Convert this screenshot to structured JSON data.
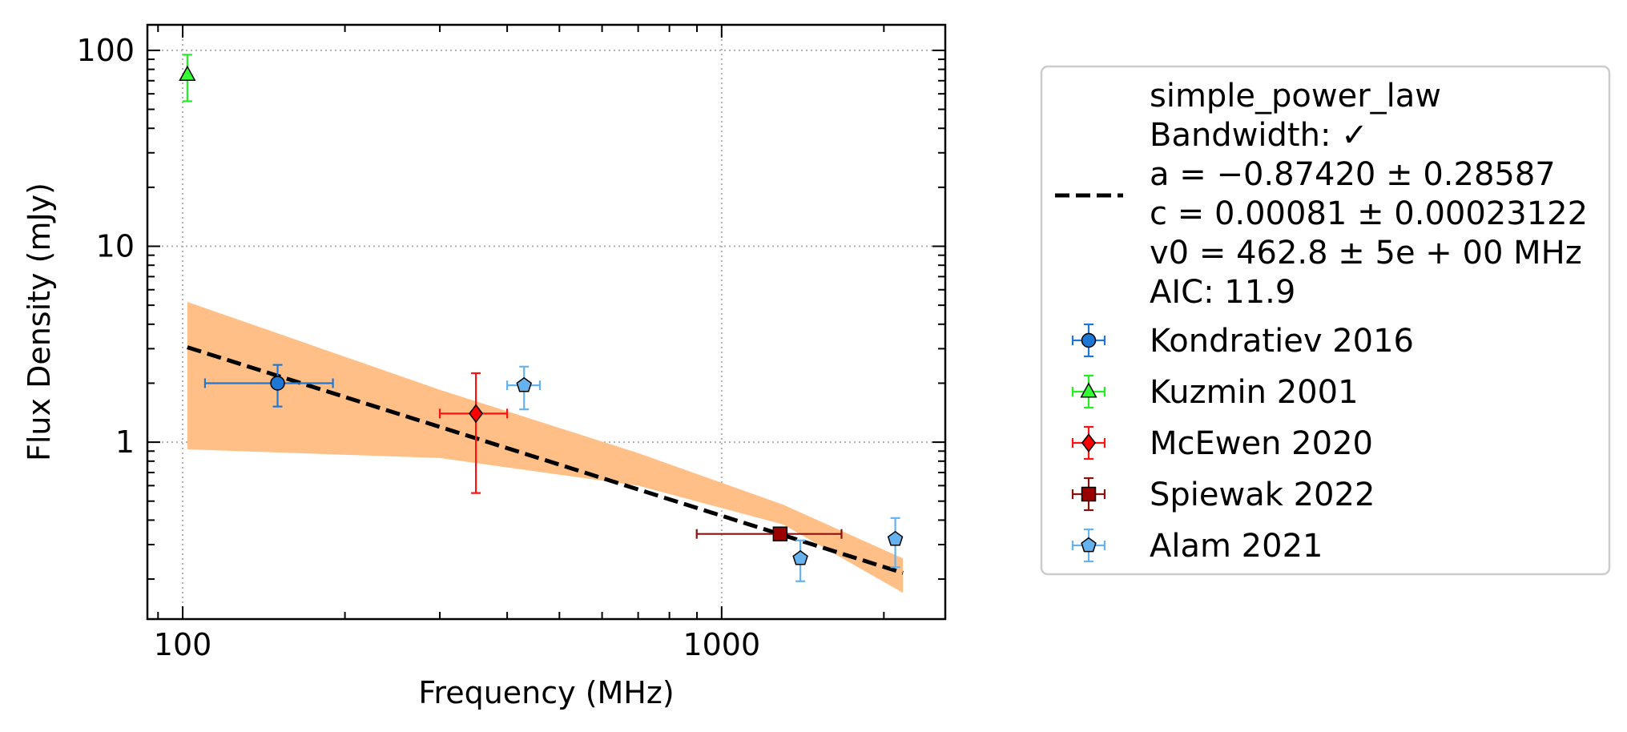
{
  "chart_data": {
    "type": "scatter",
    "xlabel": "Frequency (MHz)",
    "ylabel": "Flux Density (mJy)",
    "x_scale": "log",
    "y_scale": "log",
    "xlim": [
      86,
      2600
    ],
    "ylim": [
      0.125,
      135
    ],
    "x_tick_labels": [
      "100",
      "1000"
    ],
    "y_tick_labels": [
      "1",
      "10",
      "100"
    ],
    "grid": true,
    "legend_position": "outside-right",
    "fit": {
      "model": "simple_power_law",
      "lines": [
        "simple_power_law",
        "Bandwidth: ✓",
        "a = −0.87420 ± 0.28587",
        "c = 0.00081 ± 0.00023122",
        "v0 = 462.8 ± 5e + 00 MHz",
        "AIC: 11.9"
      ],
      "line_color": "#000000",
      "band_color": "#ffbf86",
      "x": [
        102,
        2170
      ],
      "y": [
        3.05,
        0.215
      ],
      "band_x": [
        102,
        300,
        700,
        1300,
        2170
      ],
      "band_upper": [
        5.2,
        1.85,
        0.88,
        0.48,
        0.255
      ],
      "band_lower": [
        0.92,
        0.83,
        0.6,
        0.38,
        0.17
      ]
    },
    "series": [
      {
        "name": "Kondratiev 2016",
        "marker": "circle",
        "color": "#1f77d4",
        "face": "#1f77d4",
        "points": [
          {
            "x": 150,
            "y": 2.0,
            "xerr": [
              40,
              40
            ],
            "yerr": [
              0.48,
              0.48
            ]
          }
        ]
      },
      {
        "name": "Kuzmin 2001",
        "marker": "triangle",
        "color": "#22ee22",
        "face": "#33ff33",
        "points": [
          {
            "x": 102,
            "y": 75,
            "xerr": [
              0,
              0
            ],
            "yerr": [
              20,
              20
            ]
          }
        ]
      },
      {
        "name": "McEwen 2020",
        "marker": "diamond",
        "color": "#ff1111",
        "face": "#ff0000",
        "points": [
          {
            "x": 350,
            "y": 1.4,
            "xerr": [
              50,
              50
            ],
            "yerr": [
              0.85,
              0.85
            ]
          }
        ]
      },
      {
        "name": "Spiewak 2022",
        "marker": "square",
        "color": "#8b1010",
        "face": "#9a0000",
        "points": [
          {
            "x": 1284,
            "y": 0.34,
            "xerr": [
              385,
              385
            ],
            "yerr": [
              0.0,
              0.0
            ]
          }
        ]
      },
      {
        "name": "Alam 2021",
        "marker": "pentagon",
        "color": "#66b2ee",
        "face": "#66b2ee",
        "points": [
          {
            "x": 430,
            "y": 1.95,
            "xerr": [
              30,
              30
            ],
            "yerr": [
              0.48,
              0.48
            ]
          },
          {
            "x": 1400,
            "y": 0.255,
            "xerr": [
              0,
              0
            ],
            "yerr": [
              0.06,
              0.06
            ]
          },
          {
            "x": 2100,
            "y": 0.32,
            "xerr": [
              0,
              0
            ],
            "yerr": [
              0.09,
              0.09
            ]
          }
        ]
      }
    ]
  }
}
